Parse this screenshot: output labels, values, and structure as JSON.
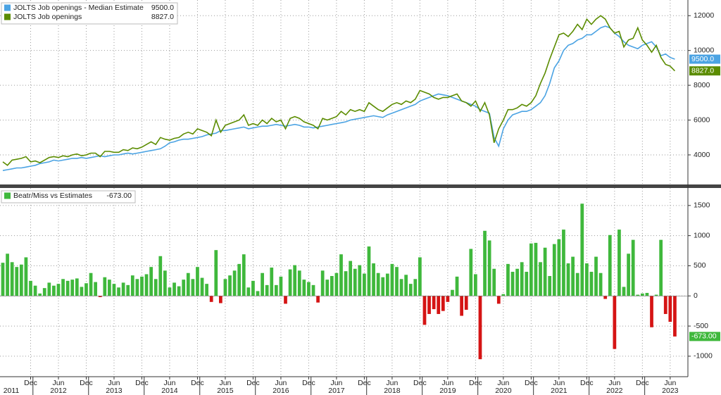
{
  "chart_data": [
    {
      "type": "line",
      "grid": true,
      "ylim": [
        2300,
        12900
      ],
      "yticks": [
        4000,
        6000,
        8000,
        10000,
        12000
      ],
      "series": [
        {
          "name": "JOLTS Job openings - Median Estimate",
          "color": "#4ba3e3",
          "last_label": "9500.0",
          "values": [
            3100,
            3150,
            3200,
            3250,
            3250,
            3300,
            3350,
            3400,
            3500,
            3550,
            3600,
            3700,
            3650,
            3700,
            3750,
            3800,
            3800,
            3850,
            3800,
            3850,
            3900,
            3950,
            3900,
            3950,
            4000,
            4000,
            4050,
            4100,
            4050,
            4100,
            4150,
            4200,
            4250,
            4300,
            4350,
            4500,
            4700,
            4750,
            4850,
            4900,
            4900,
            4950,
            5000,
            5050,
            5150,
            5200,
            5250,
            5400,
            5400,
            5450,
            5500,
            5550,
            5600,
            5500,
            5550,
            5600,
            5650,
            5650,
            5700,
            5750,
            5700,
            5650,
            5700,
            5750,
            5700,
            5600,
            5600,
            5550,
            5600,
            5650,
            5700,
            5750,
            5800,
            5850,
            5900,
            6000,
            6050,
            6100,
            6150,
            6200,
            6250,
            6200,
            6150,
            6300,
            6400,
            6500,
            6600,
            6700,
            6800,
            6900,
            7100,
            7200,
            7300,
            7400,
            7500,
            7450,
            7400,
            7300,
            7200,
            7100,
            7000,
            6900,
            6800,
            6600,
            6500,
            6400,
            5000,
            4500,
            5500,
            6000,
            6300,
            6400,
            6500,
            6500,
            6600,
            6800,
            7000,
            7400,
            8100,
            9000,
            9400,
            10000,
            10300,
            10400,
            10600,
            10700,
            10900,
            10900,
            11100,
            11300,
            11400,
            11300,
            11000,
            10800,
            10500,
            10300,
            10200,
            10100,
            10300,
            10400,
            10500,
            10200,
            9700,
            9800,
            9600,
            9500
          ]
        },
        {
          "name": "JOLTS Job openings",
          "color": "#5b8c00",
          "last_label": "8827.0",
          "values": [
            3600,
            3400,
            3700,
            3750,
            3800,
            3900,
            3600,
            3650,
            3550,
            3700,
            3850,
            3900,
            3850,
            3950,
            3900,
            4000,
            4050,
            3950,
            4000,
            4100,
            4100,
            3900,
            4200,
            4200,
            4150,
            4150,
            4300,
            4250,
            4400,
            4350,
            4450,
            4600,
            4750,
            4600,
            5000,
            4900,
            4850,
            4950,
            5000,
            5200,
            5300,
            5200,
            5500,
            5400,
            5300,
            5100,
            6000,
            5300,
            5700,
            5800,
            5900,
            6000,
            6300,
            5700,
            5800,
            5700,
            6000,
            5800,
            6100,
            5900,
            6000,
            5500,
            6100,
            6200,
            6100,
            5900,
            5800,
            5700,
            5500,
            6100,
            6000,
            6100,
            6200,
            6500,
            6300,
            6600,
            6500,
            6600,
            6500,
            7000,
            6800,
            6600,
            6500,
            6700,
            6900,
            7000,
            6900,
            7100,
            7000,
            7200,
            7700,
            7600,
            7500,
            7300,
            7200,
            7300,
            7300,
            7400,
            7500,
            7100,
            7000,
            6800,
            7100,
            6500,
            7000,
            6300,
            4700,
            5500,
            6000,
            6600,
            6600,
            6700,
            6900,
            6800,
            7000,
            7400,
            8100,
            8700,
            9500,
            10200,
            10900,
            11000,
            10800,
            11100,
            11500,
            11200,
            11800,
            11500,
            11800,
            12000,
            11800,
            11300,
            11000,
            11100,
            10200,
            10600,
            10700,
            11300,
            10600,
            10300,
            9900,
            10300,
            9600,
            9200,
            9100,
            8827
          ]
        }
      ]
    },
    {
      "type": "bar",
      "grid": true,
      "ylim": [
        -1340,
        1790
      ],
      "yticks": [
        -1000,
        -500,
        0,
        500,
        1000,
        1500
      ],
      "x": [
        "2011-06",
        "2011-07",
        "2011-08",
        "2011-09",
        "2011-10",
        "2011-11",
        "2011-12",
        "2012-01",
        "2012-02",
        "2012-03",
        "2012-04",
        "2012-05",
        "2012-06",
        "2012-07",
        "2012-08",
        "2012-09",
        "2012-10",
        "2012-11",
        "2012-12",
        "2013-01",
        "2013-02",
        "2013-03",
        "2013-04",
        "2013-05",
        "2013-06",
        "2013-07",
        "2013-08",
        "2013-09",
        "2013-10",
        "2013-11",
        "2013-12",
        "2014-01",
        "2014-02",
        "2014-03",
        "2014-04",
        "2014-05",
        "2014-06",
        "2014-07",
        "2014-08",
        "2014-09",
        "2014-10",
        "2014-11",
        "2014-12",
        "2015-01",
        "2015-02",
        "2015-03",
        "2015-04",
        "2015-05",
        "2015-06",
        "2015-07",
        "2015-08",
        "2015-09",
        "2015-10",
        "2015-11",
        "2015-12",
        "2016-01",
        "2016-02",
        "2016-03",
        "2016-04",
        "2016-05",
        "2016-06",
        "2016-07",
        "2016-08",
        "2016-09",
        "2016-10",
        "2016-11",
        "2016-12",
        "2017-01",
        "2017-02",
        "2017-03",
        "2017-04",
        "2017-05",
        "2017-06",
        "2017-07",
        "2017-08",
        "2017-09",
        "2017-10",
        "2017-11",
        "2017-12",
        "2018-01",
        "2018-02",
        "2018-03",
        "2018-04",
        "2018-05",
        "2018-06",
        "2018-07",
        "2018-08",
        "2018-09",
        "2018-10",
        "2018-11",
        "2018-12",
        "2019-01",
        "2019-02",
        "2019-03",
        "2019-04",
        "2019-05",
        "2019-06",
        "2019-07",
        "2019-08",
        "2019-09",
        "2019-10",
        "2019-11",
        "2019-12",
        "2020-01",
        "2020-02",
        "2020-03",
        "2020-04",
        "2020-05",
        "2020-06",
        "2020-07",
        "2020-08",
        "2020-09",
        "2020-10",
        "2020-11",
        "2020-12",
        "2021-01",
        "2021-02",
        "2021-03",
        "2021-04",
        "2021-05",
        "2021-06",
        "2021-07",
        "2021-08",
        "2021-09",
        "2021-10",
        "2021-11",
        "2021-12",
        "2022-01",
        "2022-02",
        "2022-03",
        "2022-04",
        "2022-05",
        "2022-06",
        "2022-07",
        "2022-08",
        "2022-09",
        "2022-10",
        "2022-11",
        "2022-12",
        "2023-01",
        "2023-02",
        "2023-03",
        "2023-04",
        "2023-05",
        "2023-06",
        "2023-07"
      ],
      "xticks": [
        {
          "value": "2011-12",
          "label": "Dec"
        },
        {
          "value": "2012-06",
          "label": "Jun"
        },
        {
          "value": "2012-12",
          "label": "Dec"
        },
        {
          "value": "2013-06",
          "label": "Jun"
        },
        {
          "value": "2013-12",
          "label": "Dec"
        },
        {
          "value": "2014-06",
          "label": "Jun"
        },
        {
          "value": "2014-12",
          "label": "Dec"
        },
        {
          "value": "2015-06",
          "label": "Jun"
        },
        {
          "value": "2015-12",
          "label": "Dec"
        },
        {
          "value": "2016-06",
          "label": "Jun"
        },
        {
          "value": "2016-12",
          "label": "Dec"
        },
        {
          "value": "2017-06",
          "label": "Jun"
        },
        {
          "value": "2017-12",
          "label": "Dec"
        },
        {
          "value": "2018-06",
          "label": "Jun"
        },
        {
          "value": "2018-12",
          "label": "Dec"
        },
        {
          "value": "2019-06",
          "label": "Jun"
        },
        {
          "value": "2019-12",
          "label": "Dec"
        },
        {
          "value": "2020-06",
          "label": "Jun"
        },
        {
          "value": "2020-12",
          "label": "Dec"
        },
        {
          "value": "2021-06",
          "label": "Jun"
        },
        {
          "value": "2021-12",
          "label": "Dec"
        },
        {
          "value": "2022-06",
          "label": "Jun"
        },
        {
          "value": "2022-12",
          "label": "Dec"
        },
        {
          "value": "2023-06",
          "label": "Jun"
        }
      ],
      "x_years": [
        2011,
        2012,
        2013,
        2014,
        2015,
        2016,
        2017,
        2018,
        2019,
        2020,
        2021,
        2022,
        2023
      ],
      "series": [
        {
          "name": "Beatr/Miss vs Estimates",
          "color": "#3fb83c",
          "negative_color": "#d51414",
          "last_label": "-673.00",
          "values": [
            550,
            700,
            560,
            480,
            520,
            640,
            250,
            170,
            40,
            130,
            220,
            170,
            200,
            280,
            250,
            270,
            290,
            150,
            210,
            380,
            230,
            -20,
            310,
            270,
            200,
            140,
            220,
            180,
            340,
            280,
            320,
            360,
            480,
            280,
            660,
            420,
            140,
            220,
            160,
            270,
            380,
            280,
            480,
            300,
            200,
            -100,
            760,
            -120,
            280,
            340,
            420,
            530,
            690,
            140,
            250,
            80,
            380,
            180,
            470,
            180,
            320,
            -130,
            440,
            510,
            420,
            270,
            230,
            180,
            -110,
            420,
            270,
            330,
            380,
            690,
            410,
            580,
            450,
            510,
            370,
            820,
            540,
            380,
            310,
            370,
            530,
            480,
            280,
            350,
            200,
            280,
            640,
            -480,
            -300,
            -220,
            -300,
            -250,
            -100,
            100,
            320,
            -330,
            -230,
            780,
            360,
            -1050,
            1080,
            920,
            450,
            -130,
            30,
            530,
            400,
            450,
            560,
            400,
            870,
            880,
            560,
            800,
            330,
            860,
            940,
            1100,
            540,
            650,
            380,
            1530,
            540,
            400,
            650,
            380,
            -50,
            1010,
            -880,
            1100,
            150,
            700,
            930,
            20,
            40,
            50,
            -520,
            20,
            930,
            -300,
            -430,
            -673
          ]
        }
      ]
    }
  ]
}
